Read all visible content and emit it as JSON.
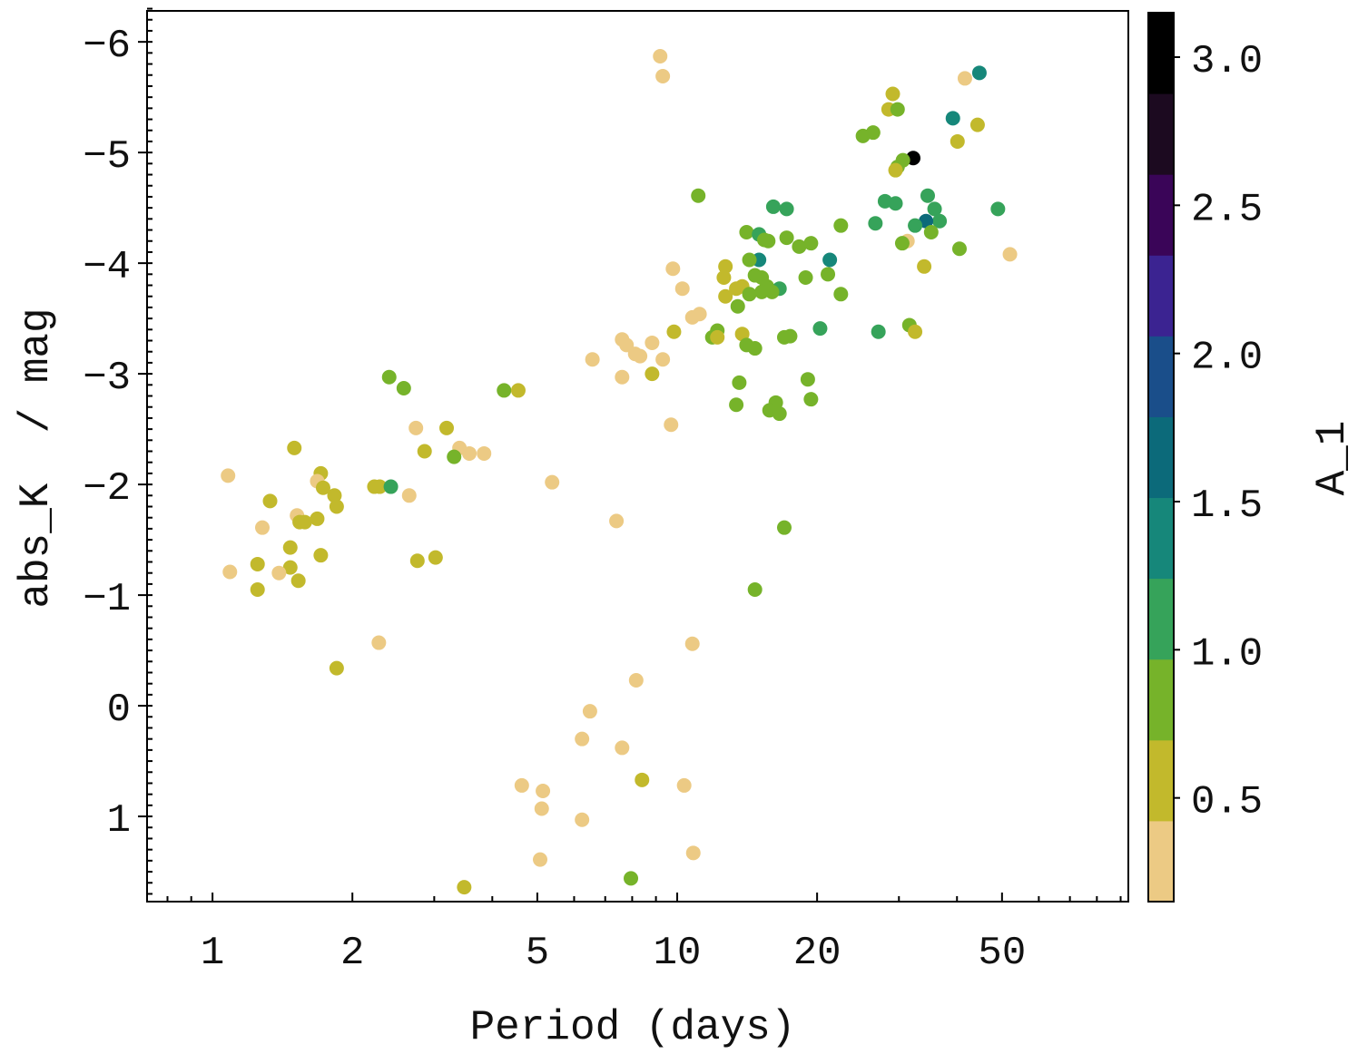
{
  "chart_data": {
    "type": "scatter",
    "title": "",
    "xlabel": "Period (days)",
    "ylabel": "abs_K  / mag",
    "xscale": "log",
    "xlim": [
      0.723,
      93.5
    ],
    "ylim": [
      1.77,
      -6.28
    ],
    "y_inverted": true,
    "grid": false,
    "xticks": [
      1,
      2,
      5,
      10,
      20,
      50
    ],
    "xtick_labels": [
      "1",
      "2",
      "5",
      "10",
      "20",
      "50"
    ],
    "yticks": [
      -6,
      -5,
      -4,
      -3,
      -2,
      -1,
      0,
      1
    ],
    "ytick_labels": [
      "−6",
      "−5",
      "−4",
      "−3",
      "−2",
      "−1",
      "0",
      "1"
    ],
    "colorbar": {
      "label": "A_1",
      "range": [
        0.15,
        3.15
      ],
      "ticks": [
        0.5,
        1.0,
        1.5,
        2.0,
        2.5,
        3.0
      ],
      "tick_labels": [
        "0.5",
        "1.0",
        "1.5",
        "2.0",
        "2.5",
        "3.0"
      ],
      "colors": [
        "#ecca84",
        "#c2b92c",
        "#76b32a",
        "#36a35a",
        "#16877a",
        "#0c6a7a",
        "#1a4e8a",
        "#3b2391",
        "#3a0558",
        "#1c0a20",
        "#000000"
      ]
    },
    "columns": [
      "period",
      "abs_K",
      "A_1"
    ],
    "points": [
      [
        9.19,
        -5.87,
        0.28
      ],
      [
        9.31,
        -5.69,
        0.28
      ],
      [
        44.7,
        -5.72,
        1.37
      ],
      [
        41.6,
        -5.67,
        0.28
      ],
      [
        29.1,
        -5.53,
        0.55
      ],
      [
        28.5,
        -5.39,
        0.55
      ],
      [
        29.8,
        -5.39,
        0.82
      ],
      [
        39.2,
        -5.31,
        1.37
      ],
      [
        44.3,
        -5.25,
        0.55
      ],
      [
        25.1,
        -5.15,
        0.82
      ],
      [
        26.4,
        -5.18,
        0.82
      ],
      [
        40.1,
        -5.1,
        0.55
      ],
      [
        32.2,
        -4.95,
        3.1
      ],
      [
        30.6,
        -4.93,
        0.82
      ],
      [
        29.8,
        -4.87,
        0.82
      ],
      [
        29.5,
        -4.84,
        0.55
      ],
      [
        11.1,
        -4.61,
        0.82
      ],
      [
        34.6,
        -4.61,
        1.1
      ],
      [
        28.0,
        -4.56,
        1.1
      ],
      [
        29.5,
        -4.54,
        1.1
      ],
      [
        16.1,
        -4.51,
        1.1
      ],
      [
        17.2,
        -4.49,
        1.1
      ],
      [
        35.8,
        -4.49,
        1.1
      ],
      [
        49.0,
        -4.49,
        1.1
      ],
      [
        36.7,
        -4.38,
        1.1
      ],
      [
        34.3,
        -4.38,
        1.65
      ],
      [
        32.5,
        -4.34,
        1.1
      ],
      [
        26.7,
        -4.36,
        1.1
      ],
      [
        22.5,
        -4.34,
        0.82
      ],
      [
        14.1,
        -4.28,
        0.82
      ],
      [
        15.0,
        -4.26,
        1.1
      ],
      [
        15.4,
        -4.21,
        0.82
      ],
      [
        15.7,
        -4.2,
        0.82
      ],
      [
        17.2,
        -4.23,
        0.82
      ],
      [
        35.2,
        -4.28,
        0.82
      ],
      [
        31.3,
        -4.2,
        0.28
      ],
      [
        30.5,
        -4.18,
        0.82
      ],
      [
        18.3,
        -4.15,
        0.82
      ],
      [
        19.4,
        -4.18,
        0.82
      ],
      [
        40.5,
        -4.13,
        0.82
      ],
      [
        15.0,
        -4.03,
        1.37
      ],
      [
        14.3,
        -4.03,
        0.82
      ],
      [
        21.3,
        -4.03,
        1.37
      ],
      [
        52.0,
        -4.08,
        0.28
      ],
      [
        9.79,
        -3.95,
        0.28
      ],
      [
        12.7,
        -3.97,
        0.55
      ],
      [
        34.0,
        -3.97,
        0.55
      ],
      [
        21.1,
        -3.9,
        0.82
      ],
      [
        14.7,
        -3.89,
        0.82
      ],
      [
        15.2,
        -3.87,
        0.82
      ],
      [
        18.9,
        -3.87,
        0.82
      ],
      [
        12.6,
        -3.87,
        0.55
      ],
      [
        10.26,
        -3.77,
        0.28
      ],
      [
        13.8,
        -3.79,
        0.55
      ],
      [
        13.4,
        -3.77,
        0.55
      ],
      [
        15.6,
        -3.79,
        0.82
      ],
      [
        16.6,
        -3.77,
        1.1
      ],
      [
        14.3,
        -3.72,
        0.82
      ],
      [
        15.2,
        -3.74,
        0.82
      ],
      [
        16.0,
        -3.74,
        0.82
      ],
      [
        12.7,
        -3.7,
        0.55
      ],
      [
        22.5,
        -3.72,
        0.82
      ],
      [
        13.5,
        -3.61,
        0.82
      ],
      [
        11.17,
        -3.54,
        0.28
      ],
      [
        10.78,
        -3.51,
        0.28
      ],
      [
        9.84,
        -3.38,
        0.55
      ],
      [
        12.2,
        -3.39,
        0.82
      ],
      [
        11.9,
        -3.33,
        0.82
      ],
      [
        12.2,
        -3.33,
        0.55
      ],
      [
        13.8,
        -3.36,
        0.55
      ],
      [
        20.3,
        -3.41,
        1.1
      ],
      [
        27.1,
        -3.38,
        1.1
      ],
      [
        31.6,
        -3.44,
        0.82
      ],
      [
        32.5,
        -3.38,
        0.55
      ],
      [
        17.0,
        -3.33,
        0.82
      ],
      [
        17.5,
        -3.34,
        0.82
      ],
      [
        7.61,
        -3.31,
        0.28
      ],
      [
        7.78,
        -3.26,
        0.28
      ],
      [
        8.83,
        -3.28,
        0.28
      ],
      [
        14.1,
        -3.26,
        0.82
      ],
      [
        14.7,
        -3.23,
        0.82
      ],
      [
        8.12,
        -3.18,
        0.28
      ],
      [
        8.32,
        -3.16,
        0.28
      ],
      [
        9.31,
        -3.13,
        0.28
      ],
      [
        6.57,
        -3.13,
        0.28
      ],
      [
        8.83,
        -3.0,
        0.55
      ],
      [
        7.61,
        -2.97,
        0.28
      ],
      [
        2.4,
        -2.97,
        0.82
      ],
      [
        2.58,
        -2.87,
        0.82
      ],
      [
        4.24,
        -2.85,
        0.82
      ],
      [
        4.55,
        -2.85,
        0.55
      ],
      [
        19.1,
        -2.95,
        0.82
      ],
      [
        13.6,
        -2.92,
        0.82
      ],
      [
        19.4,
        -2.77,
        0.82
      ],
      [
        13.4,
        -2.72,
        0.82
      ],
      [
        16.3,
        -2.74,
        0.82
      ],
      [
        15.8,
        -2.67,
        0.82
      ],
      [
        16.6,
        -2.64,
        0.82
      ],
      [
        9.7,
        -2.54,
        0.28
      ],
      [
        2.74,
        -2.51,
        0.28
      ],
      [
        3.19,
        -2.51,
        0.55
      ],
      [
        1.5,
        -2.33,
        0.55
      ],
      [
        2.86,
        -2.3,
        0.55
      ],
      [
        3.4,
        -2.33,
        0.28
      ],
      [
        3.57,
        -2.28,
        0.28
      ],
      [
        3.84,
        -2.28,
        0.28
      ],
      [
        3.31,
        -2.25,
        0.82
      ],
      [
        1.08,
        -2.08,
        0.28
      ],
      [
        1.71,
        -2.1,
        0.55
      ],
      [
        1.68,
        -2.03,
        0.28
      ],
      [
        1.73,
        -1.97,
        0.55
      ],
      [
        2.23,
        -1.98,
        0.55
      ],
      [
        2.29,
        -1.98,
        0.55
      ],
      [
        2.42,
        -1.98,
        1.1
      ],
      [
        5.38,
        -2.02,
        0.28
      ],
      [
        2.65,
        -1.9,
        0.28
      ],
      [
        1.83,
        -1.9,
        0.55
      ],
      [
        1.33,
        -1.85,
        0.55
      ],
      [
        1.85,
        -1.8,
        0.55
      ],
      [
        1.52,
        -1.72,
        0.28
      ],
      [
        1.54,
        -1.66,
        0.55
      ],
      [
        1.58,
        -1.66,
        0.55
      ],
      [
        1.68,
        -1.69,
        0.55
      ],
      [
        7.4,
        -1.67,
        0.28
      ],
      [
        1.28,
        -1.61,
        0.28
      ],
      [
        17.0,
        -1.61,
        0.82
      ],
      [
        1.47,
        -1.43,
        0.55
      ],
      [
        1.71,
        -1.36,
        0.55
      ],
      [
        3.02,
        -1.34,
        0.55
      ],
      [
        2.76,
        -1.31,
        0.55
      ],
      [
        1.25,
        -1.28,
        0.55
      ],
      [
        1.47,
        -1.25,
        0.55
      ],
      [
        1.09,
        -1.21,
        0.28
      ],
      [
        1.39,
        -1.2,
        0.28
      ],
      [
        1.53,
        -1.13,
        0.55
      ],
      [
        1.25,
        -1.05,
        0.55
      ],
      [
        14.7,
        -1.05,
        0.82
      ],
      [
        2.28,
        -0.57,
        0.28
      ],
      [
        10.78,
        -0.56,
        0.28
      ],
      [
        1.85,
        -0.34,
        0.55
      ],
      [
        8.16,
        -0.23,
        0.28
      ],
      [
        6.49,
        0.05,
        0.28
      ],
      [
        6.24,
        0.3,
        0.28
      ],
      [
        7.61,
        0.38,
        0.28
      ],
      [
        8.4,
        0.67,
        0.55
      ],
      [
        4.63,
        0.72,
        0.28
      ],
      [
        10.35,
        0.72,
        0.28
      ],
      [
        5.14,
        0.77,
        0.28
      ],
      [
        5.11,
        0.93,
        0.28
      ],
      [
        6.24,
        1.03,
        0.28
      ],
      [
        10.83,
        1.33,
        0.28
      ],
      [
        5.07,
        1.39,
        0.28
      ],
      [
        7.95,
        1.56,
        0.82
      ],
      [
        3.48,
        1.64,
        0.55
      ]
    ]
  }
}
